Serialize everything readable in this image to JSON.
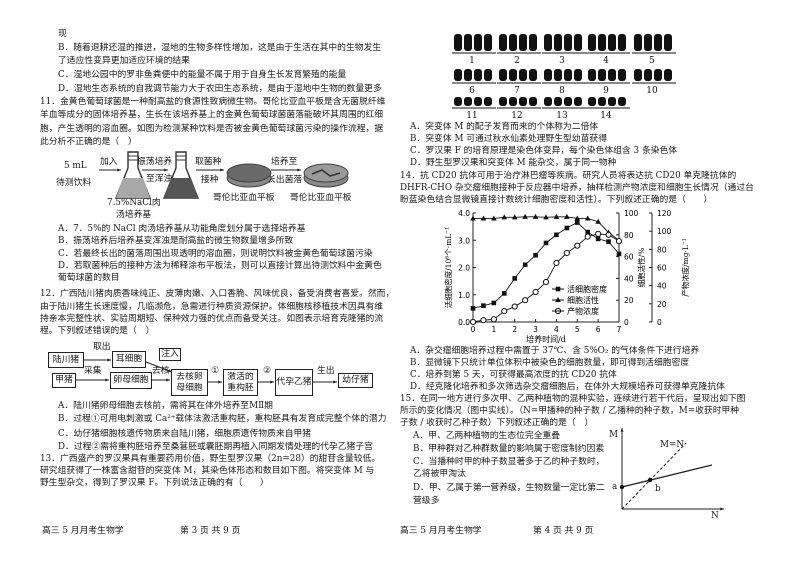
{
  "left_page": {
    "lines": [
      "现",
      "B．随着退耕还湿的推进，湿地的生物多样性增加，这是由于生活在其中的生物发生",
      "了适应性变异更加适应环境的结果",
      "C．湿地公园中的罗非鱼粪便中的能量不属于用于自身生长发育繁殖的能量",
      "D．湿地生态系统的自我调节能力大于农田生态系统，是由于湿地中生物的数量更多",
      "11．金黄色葡萄球菌是一种耐高盐的食源性致病微生物。哥伦比亚血平板是含无菌脱纤维",
      "羊血等成分的固体培养基，生长在该培养基上的金黄色葡萄球菌菌落能破坏其周围的红细",
      "胞，产生透明的溶血圈。如图为检测某种饮料是否被金黄色葡萄球菌污染的操作流程，据",
      "此分析不正确的是（　）"
    ],
    "q11_diagram": {
      "sample_amount": "5 mL",
      "sample": "待测饮料",
      "add": "加入",
      "shake1": "振荡培养",
      "shake2": "至浑浊",
      "medium1": "7.5%NaCl肉",
      "medium2": "汤培养基",
      "take1": "取菌种",
      "take2": "接种",
      "plate1": "哥伦比亚血平板",
      "grow1": "培养至",
      "grow2": "长出菌落",
      "plate2": "哥伦比亚血平板"
    },
    "q11_options": [
      "A．7．5%的 NaCl 肉汤培养基从功能角度划分属于选择培养基",
      "B．振荡培养后培养基变浑浊是耐高盐的微生物数量增多所致",
      "C．若最终长出的菌落周围出现透明的溶血圈，则说明饮料被金黄色葡萄球菌污染",
      "D．若取菌种后的接种方法为稀释涂布平板法，则可以直接计算出待测饮料中金黄色",
      "葡萄球菌的数目"
    ],
    "q12_lines": [
      "12．广西陆川猪肉质香味纯正、皮薄肉嫩、入口香脆、风味优良，备受消费者喜爱。然而，",
      "由于陆川猪生长速度慢，几临濒危，急需进行种质资源保护。体细胞核移植技术因具有维",
      "持亲本完整性状、实验周期短、保种效力强的优点而备受关注。如图表示培育克隆猪的流",
      "程。下列叙述错误的是（　）"
    ],
    "q12_diagram": {
      "pig1": "陆川猪",
      "take": "取出",
      "ear": "耳细胞",
      "inject": "注入",
      "pig2": "甲猪",
      "collect": "采集",
      "oocyte": "卵母细胞",
      "enucleate": "去核",
      "enucleated": "去核卵母细胞",
      "step1": "①",
      "embryo": "激活的重构胚",
      "step2": "②",
      "surrogate": "代孕乙猪",
      "birth": "生出",
      "piglet": "幼仔猪"
    },
    "q12_options": [
      "A．陆川猪卵母细胞去核前，需将其在体外培养至MⅡ期",
      "B．过程①可用电刺激或 Ca²⁺载体法激活重构胚，重构胚具有发育成完整个体的潜力",
      "C．幼仔猪细胞核遗传物质来自陆川猪，细胞质遗传物质来自甲猪",
      "D．过程②需将重构胚培养至桑葚胚或囊胚期再植入同期发情处理的代孕乙猪子宫"
    ],
    "q13_lines": [
      "13．广西盛产的罗汉果具有重要药用价值，野生型罗汉果（2n=28）的甜苷含量较低。",
      "研究组获得了一株富含甜苷的突变体 M，其染色体形态和数目如下图。将突变体 M 与",
      "野生型杂交，得到了罗汉果 F。下列说法正确的有（　　）"
    ],
    "footer_title": "高三 5 月月考生物学",
    "footer_page": "第 3 页 共 9 页"
  },
  "right_page": {
    "karyotype_labels": [
      "1",
      "2",
      "3",
      "4",
      "5",
      "6",
      "7",
      "8",
      "9",
      "10",
      "11",
      "12",
      "13",
      "14"
    ],
    "q13_options": [
      "A．突变体 M 的配子发育而来的个体称为二倍体",
      "B．突变体 M 可通过秋水仙素处理野生型幼苗获得",
      "C．罗汉果 F 的培育原理是染色体变异，每个染色体组含 3 条染色体",
      "D．野生型罗汉果和突变体 M 能杂交，属于同一物种"
    ],
    "q14_lines": [
      "14．抗 CD20 抗体可用于治疗淋巴瘤等疾病。研究人员将表达抗 CD20 单克隆抗体的",
      "DHFR-CHO 杂交瘤细胞接种于反应器中培养，抽样检测产物浓度和细胞生长情况（通过台",
      "盼蓝染色结合显微镜直接计数统计细胞密度和活性）。下列叙述正确的是（　　）"
    ],
    "q14_options": [
      "A．杂交瘤细胞培养过程中需置于 37℃、含 5%O₂ 的气体条件下进行培养",
      "B．显微镜下只统计单位体积中被染色的细胞数量，即可得到活细胞密度",
      "C．培养到第 5 天，可获得最高浓度的抗 CD20 抗体",
      "D．经克隆化培养和多次筛选杂交瘤细胞后，在体外大规模培养可获得单克隆抗体"
    ],
    "q15_lines": [
      "15．在同一地方进行多次甲、乙两种植物的混种实验，连续进行若干代后，呈现出如下图",
      "所示的变化情况（图中实线）。（N=甲播种的种子数 / 乙播种的种子数，M=收获时甲种",
      "子数 / 收获时乙种子数）下列叙述正确的是（　）"
    ],
    "q15_options": [
      "A．甲、乙两种植物的生态位完全重叠",
      "B．甲种群对乙种群数量的影响属于密度制约因素",
      "C．当播种时甲的种子数显著多于乙的种子数时，",
      "乙将被甲淘汰",
      "D．甲、乙属于第一营养级，生物数量一定比第二",
      "营级多"
    ],
    "q15_graph": {
      "y_axis": "M",
      "x_axis": "N",
      "line_label": "M=N",
      "point_a": "a",
      "point_b": "b"
    },
    "footer_title": "高三 5 月月考生物学",
    "footer_page": "第 4 页 共 9 页"
  },
  "chart_data": {
    "type": "line",
    "xlabel": "培养时间/d",
    "x": [
      0,
      0.5,
      1,
      1.5,
      2,
      2.5,
      3,
      3.5,
      4,
      4.5,
      5,
      5.5,
      6,
      6.5,
      7
    ],
    "xlim": [
      0,
      7
    ],
    "x_ticks": [
      "0",
      "1",
      "2",
      "3",
      "4",
      "5",
      "6",
      "7"
    ],
    "axes": [
      {
        "label": "活细胞密度/10⁶个·mL⁻¹",
        "ylim": [
          0,
          4
        ],
        "ticks": [
          "0.0",
          "1.0",
          "2.0",
          "3.0",
          "4.0"
        ],
        "position": "left"
      },
      {
        "label": "细胞活性/%",
        "ylim": [
          0,
          100
        ],
        "ticks": [
          "0",
          "20",
          "40",
          "60",
          "80",
          "100"
        ],
        "position": "right"
      },
      {
        "label": "产物浓度/mg·L⁻¹",
        "ylim": [
          0,
          120
        ],
        "ticks": [
          "0",
          "20",
          "40",
          "60",
          "80",
          "100",
          "120"
        ],
        "position": "far-right"
      }
    ],
    "series": [
      {
        "name": "活细胞密度",
        "axis": 0,
        "marker": "filled-square",
        "values": [
          0.5,
          0.6,
          0.7,
          1.05,
          1.6,
          2.1,
          2.45,
          2.9,
          3.2,
          3.45,
          3.65,
          3.3,
          3.05,
          2.95,
          2.5
        ]
      },
      {
        "name": "细胞活性",
        "axis": 1,
        "marker": "filled-triangle",
        "values": [
          95,
          95,
          95,
          96,
          96,
          96.5,
          96.5,
          96,
          96.5,
          96.5,
          95,
          95,
          92,
          82,
          75
        ]
      },
      {
        "name": "产物浓度",
        "axis": 2,
        "marker": "open-circle",
        "values": [
          0,
          2,
          3,
          12,
          17,
          24,
          33,
          44,
          65,
          76,
          84,
          94,
          97,
          96,
          89
        ]
      }
    ],
    "legend": "center-right",
    "grid": false
  }
}
